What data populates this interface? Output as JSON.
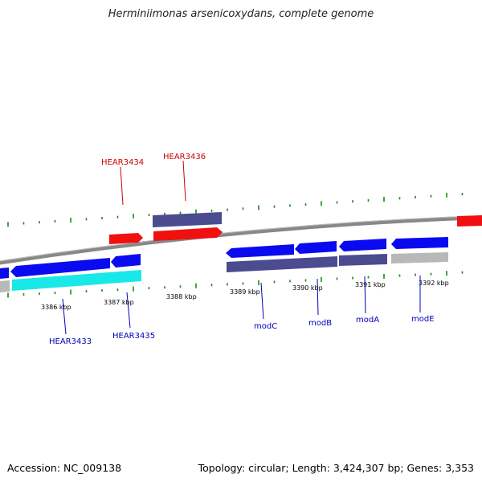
{
  "title": "Herminiimonas arsenicoxydans, complete genome",
  "footer": {
    "accession": "Accession: NC_009138",
    "topology": "Topology: circular; Length: 3,424,307 bp; Genes: 3,353"
  },
  "colors": {
    "forward_gene": "#0a0af0",
    "operon_gene": "#4b4b8f",
    "red_gene": "#f01010",
    "cyan_gene": "#18e8e8",
    "grey_gene": "#b8b8b8",
    "backbone": "#7a7a7a",
    "tick": "#1a8a1a",
    "label_top": "#cc0000",
    "label_bottom": "#0000bb"
  },
  "scale_labels": [
    "3386 kbp",
    "3387 kbp",
    "3388 kbp",
    "3389 kbp",
    "3390 kbp",
    "3391 kbp",
    "3392 kbp"
  ],
  "gene_labels": {
    "top": [
      "HEAR3434",
      "HEAR3436"
    ],
    "bottom": [
      "HEAR3433",
      "HEAR3435",
      "modC",
      "modB",
      "modA",
      "modE"
    ]
  }
}
